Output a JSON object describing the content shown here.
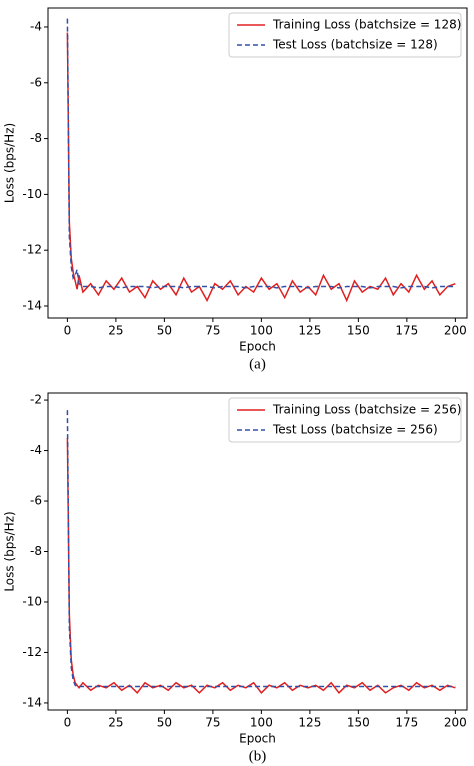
{
  "chart_data": [
    {
      "type": "line",
      "caption": "(a)",
      "xlabel": "Epoch",
      "ylabel": "Loss (bps/Hz)",
      "xlim": [
        -10,
        206
      ],
      "ylim": [
        -14.43,
        -3.32
      ],
      "xticks": [
        0,
        25,
        50,
        75,
        100,
        125,
        150,
        175,
        200
      ],
      "yticks": [
        -14,
        -12,
        -10,
        -8,
        -6,
        -4
      ],
      "legend": "upper right",
      "x": [
        0,
        1,
        2,
        3,
        4,
        5,
        6,
        8,
        12,
        16,
        20,
        24,
        28,
        32,
        36,
        40,
        44,
        48,
        52,
        56,
        60,
        64,
        68,
        72,
        76,
        80,
        84,
        88,
        92,
        96,
        100,
        104,
        108,
        112,
        116,
        120,
        124,
        128,
        132,
        136,
        140,
        144,
        148,
        152,
        156,
        160,
        164,
        168,
        172,
        176,
        180,
        184,
        188,
        192,
        196,
        200
      ],
      "series": [
        {
          "name": "Training Loss (batchsize = 128)",
          "color": "#e02020",
          "dash": false,
          "values": [
            -4.2,
            -11.0,
            -12.3,
            -12.8,
            -13.1,
            -13.4,
            -12.9,
            -13.5,
            -13.2,
            -13.6,
            -13.1,
            -13.4,
            -13.0,
            -13.5,
            -13.3,
            -13.7,
            -13.1,
            -13.4,
            -13.2,
            -13.6,
            -13.0,
            -13.5,
            -13.3,
            -13.8,
            -13.2,
            -13.4,
            -13.1,
            -13.6,
            -13.3,
            -13.5,
            -13.0,
            -13.4,
            -13.2,
            -13.7,
            -13.1,
            -13.5,
            -13.3,
            -13.6,
            -12.9,
            -13.4,
            -13.2,
            -13.8,
            -13.1,
            -13.5,
            -13.3,
            -13.4,
            -13.0,
            -13.6,
            -13.2,
            -13.5,
            -12.9,
            -13.4,
            -13.1,
            -13.6,
            -13.3,
            -13.2
          ]
        },
        {
          "name": "Test Loss (batchsize = 128)",
          "color": "#3050a8",
          "dash": true,
          "values": [
            -3.7,
            -11.5,
            -12.6,
            -13.0,
            -12.9,
            -12.7,
            -13.2,
            -13.3,
            -13.3,
            -13.35,
            -13.3,
            -13.3,
            -13.35,
            -13.3,
            -13.3,
            -13.3,
            -13.35,
            -13.3,
            -13.3,
            -13.3,
            -13.35,
            -13.3,
            -13.3,
            -13.3,
            -13.35,
            -13.3,
            -13.3,
            -13.3,
            -13.35,
            -13.3,
            -13.3,
            -13.3,
            -13.35,
            -13.3,
            -13.3,
            -13.3,
            -13.35,
            -13.3,
            -13.3,
            -13.3,
            -13.35,
            -13.3,
            -13.3,
            -13.3,
            -13.35,
            -13.3,
            -13.3,
            -13.3,
            -13.35,
            -13.3,
            -13.3,
            -13.3,
            -13.35,
            -13.3,
            -13.3,
            -13.3
          ]
        }
      ]
    },
    {
      "type": "line",
      "caption": "(b)",
      "xlabel": "Epoch",
      "ylabel": "Loss (bps/Hz)",
      "xlim": [
        -10,
        206
      ],
      "ylim": [
        -14.28,
        -1.72
      ],
      "xticks": [
        0,
        25,
        50,
        75,
        100,
        125,
        150,
        175,
        200
      ],
      "yticks": [
        -14,
        -12,
        -10,
        -8,
        -6,
        -4,
        -2
      ],
      "legend": "upper right",
      "x": [
        0,
        1,
        2,
        3,
        4,
        5,
        6,
        8,
        12,
        16,
        20,
        24,
        28,
        32,
        36,
        40,
        44,
        48,
        52,
        56,
        60,
        64,
        68,
        72,
        76,
        80,
        84,
        88,
        92,
        96,
        100,
        104,
        108,
        112,
        116,
        120,
        124,
        128,
        132,
        136,
        140,
        144,
        148,
        152,
        156,
        160,
        164,
        168,
        172,
        176,
        180,
        184,
        188,
        192,
        196,
        200
      ],
      "series": [
        {
          "name": "Training Loss (batchsize = 256)",
          "color": "#e02020",
          "dash": false,
          "values": [
            -3.5,
            -10.5,
            -12.3,
            -12.9,
            -13.2,
            -13.3,
            -13.4,
            -13.2,
            -13.5,
            -13.3,
            -13.4,
            -13.2,
            -13.5,
            -13.3,
            -13.6,
            -13.2,
            -13.4,
            -13.3,
            -13.5,
            -13.2,
            -13.4,
            -13.3,
            -13.6,
            -13.3,
            -13.4,
            -13.2,
            -13.5,
            -13.3,
            -13.4,
            -13.2,
            -13.6,
            -13.3,
            -13.4,
            -13.2,
            -13.5,
            -13.3,
            -13.4,
            -13.3,
            -13.5,
            -13.2,
            -13.6,
            -13.3,
            -13.4,
            -13.2,
            -13.5,
            -13.3,
            -13.6,
            -13.4,
            -13.3,
            -13.5,
            -13.2,
            -13.4,
            -13.3,
            -13.5,
            -13.3,
            -13.4
          ]
        },
        {
          "name": "Test Loss (batchsize = 256)",
          "color": "#3050a8",
          "dash": true,
          "values": [
            -2.4,
            -11.0,
            -12.6,
            -13.1,
            -13.3,
            -13.35,
            -13.35,
            -13.35,
            -13.35,
            -13.35,
            -13.35,
            -13.35,
            -13.35,
            -13.35,
            -13.35,
            -13.35,
            -13.35,
            -13.35,
            -13.35,
            -13.35,
            -13.35,
            -13.35,
            -13.35,
            -13.35,
            -13.35,
            -13.35,
            -13.35,
            -13.35,
            -13.35,
            -13.35,
            -13.35,
            -13.35,
            -13.35,
            -13.35,
            -13.35,
            -13.35,
            -13.35,
            -13.35,
            -13.35,
            -13.35,
            -13.35,
            -13.35,
            -13.35,
            -13.35,
            -13.35,
            -13.35,
            -13.35,
            -13.35,
            -13.35,
            -13.35,
            -13.35,
            -13.35,
            -13.35,
            -13.35,
            -13.35,
            -13.35
          ]
        }
      ]
    }
  ]
}
